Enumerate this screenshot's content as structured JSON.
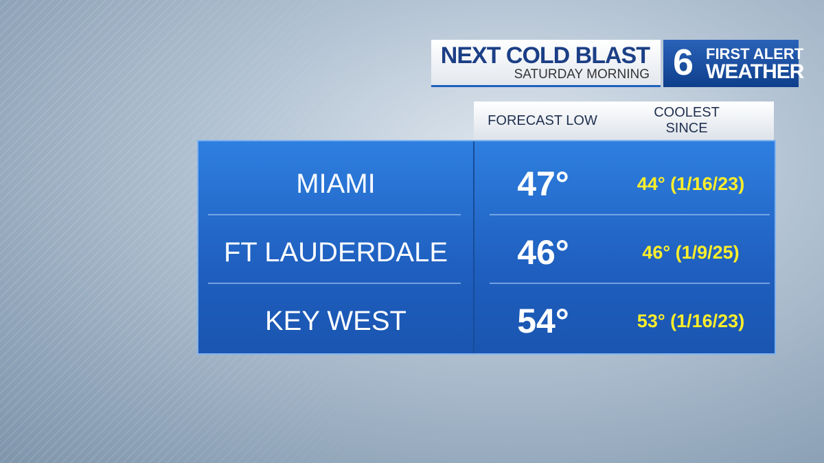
{
  "header": {
    "title": "NEXT COLD BLAST",
    "subtitle": "SATURDAY MORNING"
  },
  "logo": {
    "number": "6",
    "line1": "FIRST ALERT",
    "line2": "WEATHER"
  },
  "table": {
    "columns": [
      "FORECAST LOW",
      "COOLEST SINCE"
    ],
    "rows": [
      [
        "MIAMI",
        "47°",
        "44° (1/16/23)"
      ],
      [
        "FT LAUDERDALE",
        "46°",
        "46° (1/9/25)"
      ],
      [
        "KEY WEST",
        "54°",
        "53° (1/16/23)"
      ]
    ]
  }
}
